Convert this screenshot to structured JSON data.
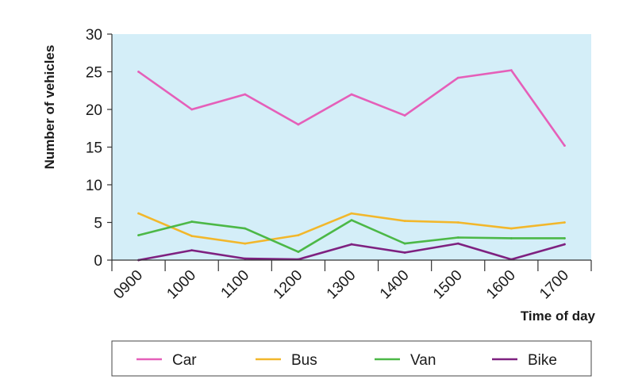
{
  "chart_data": {
    "type": "line",
    "title": "",
    "xlabel": "Time of day",
    "ylabel": "Number of vehicles",
    "categories": [
      "0900",
      "1000",
      "1100",
      "1200",
      "1300",
      "1400",
      "1500",
      "1600",
      "1700"
    ],
    "ylim": [
      0,
      30
    ],
    "yticks": [
      0,
      5,
      10,
      15,
      20,
      25,
      30
    ],
    "grid": false,
    "plot_background": "#d4eef8",
    "legend_position": "bottom",
    "series": [
      {
        "name": "Car",
        "color": "#e55fb9",
        "values": [
          25,
          20,
          22,
          18,
          22,
          19.2,
          24.2,
          25.2,
          15.2
        ]
      },
      {
        "name": "Bus",
        "color": "#f2b72b",
        "values": [
          6.2,
          3.2,
          2.2,
          3.3,
          6.2,
          5.2,
          5,
          4.2,
          5
        ]
      },
      {
        "name": "Van",
        "color": "#4cb847",
        "values": [
          3.3,
          5.1,
          4.2,
          1.1,
          5.3,
          2.2,
          3,
          2.9,
          2.9
        ]
      },
      {
        "name": "Bike",
        "color": "#7e2180",
        "values": [
          0,
          1.3,
          0.2,
          0.1,
          2.1,
          1,
          2.2,
          0.1,
          2.1
        ]
      }
    ]
  }
}
